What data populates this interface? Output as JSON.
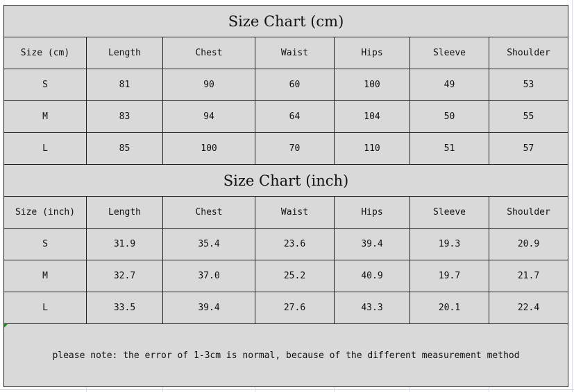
{
  "cm_table": {
    "title": "Size Chart (cm)",
    "headers": [
      "Size (cm)",
      "Length",
      "Chest",
      "Waist",
      "Hips",
      "Sleeve",
      "Shoulder"
    ],
    "rows": [
      [
        "S",
        "81",
        "90",
        "60",
        "100",
        "49",
        "53"
      ],
      [
        "M",
        "83",
        "94",
        "64",
        "104",
        "50",
        "55"
      ],
      [
        "L",
        "85",
        "100",
        "70",
        "110",
        "51",
        "57"
      ]
    ]
  },
  "inch_table": {
    "title": "Size Chart (inch)",
    "headers": [
      "Size (inch)",
      "Length",
      "Chest",
      "Waist",
      "Hips",
      "Sleeve",
      "Shoulder"
    ],
    "rows": [
      [
        "S",
        "31.9",
        "35.4",
        "23.6",
        "39.4",
        "19.3",
        "20.9"
      ],
      [
        "M",
        "32.7",
        "37.0",
        "25.2",
        "40.9",
        "19.7",
        "21.7"
      ],
      [
        "L",
        "33.5",
        "39.4",
        "27.6",
        "43.3",
        "20.1",
        "22.4"
      ]
    ]
  },
  "note": "please note: the error of 1-3cm is normal, because of the different measurement method",
  "colors": {
    "cell_fill": "#d9d9d9",
    "border": "#222222",
    "gridline": "#d6dbe8"
  }
}
